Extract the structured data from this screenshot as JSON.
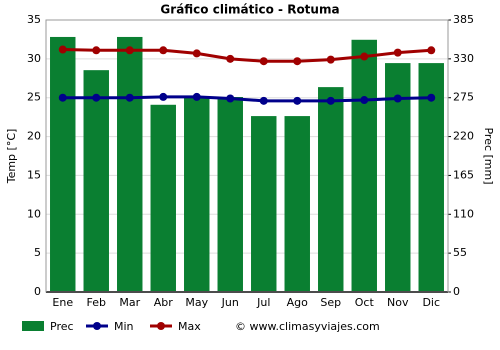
{
  "chart_data": {
    "type": "bar",
    "title": "Gráfico climático - Rotuma",
    "y_label": "Temp [°C]",
    "y2_label": "Prec [mm]",
    "categories": [
      "Ene",
      "Feb",
      "Mar",
      "Abr",
      "May",
      "Jun",
      "Jul",
      "Ago",
      "Sep",
      "Oct",
      "Nov",
      "Dic"
    ],
    "series": [
      {
        "name": "Prec",
        "type": "bar",
        "axis": "y2",
        "color": "#0a7f31",
        "values": [
          361,
          314,
          361,
          265,
          276,
          276,
          249,
          249,
          290,
          357,
          324,
          324
        ]
      },
      {
        "name": "Min",
        "type": "line",
        "color": "#00008b",
        "values": [
          25.0,
          25.0,
          25.0,
          25.1,
          25.1,
          24.9,
          24.6,
          24.6,
          24.6,
          24.7,
          24.9,
          25.0
        ]
      },
      {
        "name": "Max",
        "type": "line",
        "color": "#a00000",
        "values": [
          31.2,
          31.1,
          31.1,
          31.1,
          30.7,
          30.0,
          29.7,
          29.7,
          29.9,
          30.3,
          30.8,
          31.1
        ]
      }
    ],
    "ylim": [
      0,
      35
    ],
    "yticks": [
      0,
      5,
      10,
      15,
      20,
      25,
      30,
      35
    ],
    "y2lim": [
      0,
      385
    ],
    "y2ticks": [
      0,
      55,
      110,
      165,
      220,
      275,
      330,
      385
    ],
    "grid": true,
    "credit": "© www.climasyviajes.com"
  }
}
